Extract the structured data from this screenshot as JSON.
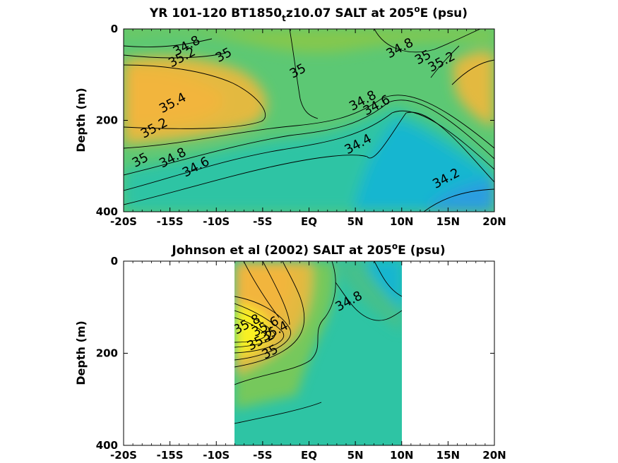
{
  "colors": {
    "deep_blue": "#2b9de0",
    "cyan": "#19b6d0",
    "teal": "#2ec4a4",
    "green": "#8fc948",
    "orange": "#f2b53c",
    "yellow": "#f9f021",
    "background": "#ffffff"
  },
  "chart_data": [
    {
      "type": "heatmap",
      "title_prefix": "YR 101-120 BT1850",
      "title_sub": "t",
      "title_mid": "z10.07 SALT at 205",
      "title_sup": "o",
      "title_suffix": "E (psu)",
      "ylabel": "Depth (m)",
      "xlabel": "",
      "x_ticks": [
        "-20S",
        "-15S",
        "-10S",
        "-5S",
        "EQ",
        "5N",
        "10N",
        "15N",
        "20N"
      ],
      "x_tick_values": [
        -20,
        -15,
        -10,
        -5,
        0,
        5,
        10,
        15,
        20
      ],
      "y_ticks": [
        "0",
        "200",
        "400"
      ],
      "y_tick_values": [
        0,
        200,
        400
      ],
      "xlim": [
        -20,
        20
      ],
      "ylim": [
        0,
        400
      ],
      "y_reversed": true,
      "colormap": "parula",
      "contour_levels": [
        34.2,
        34.4,
        34.6,
        34.8,
        35,
        35.2,
        35.4
      ],
      "contour_labels": [
        {
          "text": "34.8",
          "x": -13,
          "y": 45
        },
        {
          "text": "35.2",
          "x": -13.5,
          "y": 70
        },
        {
          "text": "35",
          "x": -9,
          "y": 65
        },
        {
          "text": "35",
          "x": -1,
          "y": 100
        },
        {
          "text": "35.4",
          "x": -14.5,
          "y": 170
        },
        {
          "text": "35.2",
          "x": -16.5,
          "y": 225
        },
        {
          "text": "35",
          "x": -18,
          "y": 295
        },
        {
          "text": "34.8",
          "x": -14.5,
          "y": 290
        },
        {
          "text": "34.6",
          "x": -12,
          "y": 310
        },
        {
          "text": "34.8",
          "x": 6,
          "y": 165
        },
        {
          "text": "34.6",
          "x": 7.5,
          "y": 175
        },
        {
          "text": "34.4",
          "x": 5.5,
          "y": 260
        },
        {
          "text": "34.8",
          "x": 10,
          "y": 50
        },
        {
          "text": "35",
          "x": 12.5,
          "y": 70
        },
        {
          "text": "35.2",
          "x": 14.5,
          "y": 80
        },
        {
          "text": "34.2",
          "x": 15,
          "y": 335
        }
      ]
    },
    {
      "type": "heatmap",
      "title_prefix": "Johnson et al (2002) SALT at 205",
      "title_sup": "o",
      "title_suffix": "E (psu)",
      "ylabel": "Depth (m)",
      "xlabel": "",
      "x_ticks": [
        "-20S",
        "-15S",
        "-10S",
        "-5S",
        "EQ",
        "5N",
        "10N",
        "15N",
        "20N"
      ],
      "x_tick_values": [
        -20,
        -15,
        -10,
        -5,
        0,
        5,
        10,
        15,
        20
      ],
      "y_ticks": [
        "0",
        "200",
        "400"
      ],
      "y_tick_values": [
        0,
        200,
        400
      ],
      "xlim": [
        -20,
        20
      ],
      "ylim": [
        0,
        400
      ],
      "y_reversed": true,
      "data_x_range": [
        -8,
        10
      ],
      "colormap": "parula",
      "contour_levels": [
        34.8,
        35,
        35.2,
        35.4,
        35.6,
        35.8
      ],
      "contour_labels": [
        {
          "text": "34.8",
          "x": 4.5,
          "y": 95
        },
        {
          "text": "35.8",
          "x": -6.5,
          "y": 145
        },
        {
          "text": "35.6",
          "x": -4.5,
          "y": 150
        },
        {
          "text": "35.4",
          "x": -3.5,
          "y": 160
        },
        {
          "text": "35.2",
          "x": -5,
          "y": 180
        },
        {
          "text": "35",
          "x": -4,
          "y": 205
        }
      ]
    }
  ]
}
